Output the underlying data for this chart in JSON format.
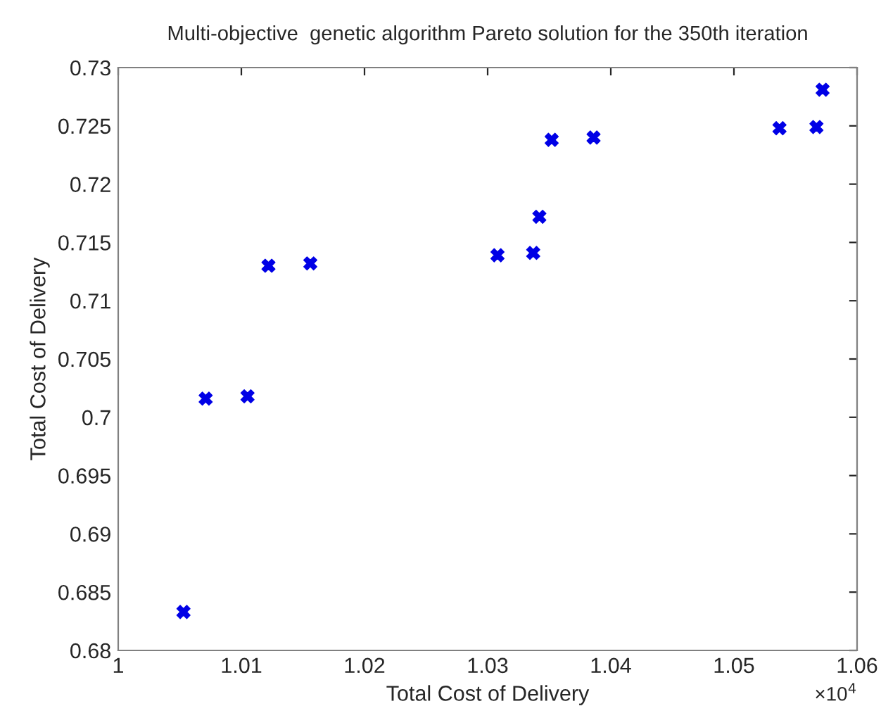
{
  "chart_data": {
    "type": "scatter",
    "title": "Multi-objective  genetic algorithm Pareto solution for the 350th iteration",
    "xlabel": "Total Cost of Delivery",
    "ylabel": "Total Cost of Delivery",
    "x": [
      1.0053,
      1.0071,
      1.0105,
      1.0122,
      1.0156,
      1.0308,
      1.0337,
      1.0342,
      1.0352,
      1.0386,
      1.0537,
      1.0567,
      1.0572
    ],
    "series": [
      {
        "color": "#0000e6",
        "values": [
          0.6833,
          0.7016,
          0.7018,
          0.713,
          0.7132,
          0.7139,
          0.7141,
          0.7172,
          0.7238,
          0.724,
          0.7248,
          0.7249,
          0.7281
        ]
      }
    ],
    "xlim": [
      1,
      1.06
    ],
    "xticks": [
      1,
      1.01,
      1.02,
      1.03,
      1.04,
      1.05,
      1.06
    ],
    "ylim": [
      0.68,
      0.73
    ],
    "yticks": [
      0.68,
      0.685,
      0.69,
      0.695,
      0.7,
      0.705,
      0.71,
      0.715,
      0.72,
      0.725,
      0.73
    ],
    "annotations": [
      "×10$^{4}$"
    ],
    "marker": "cross",
    "grid": false,
    "legend": false
  }
}
